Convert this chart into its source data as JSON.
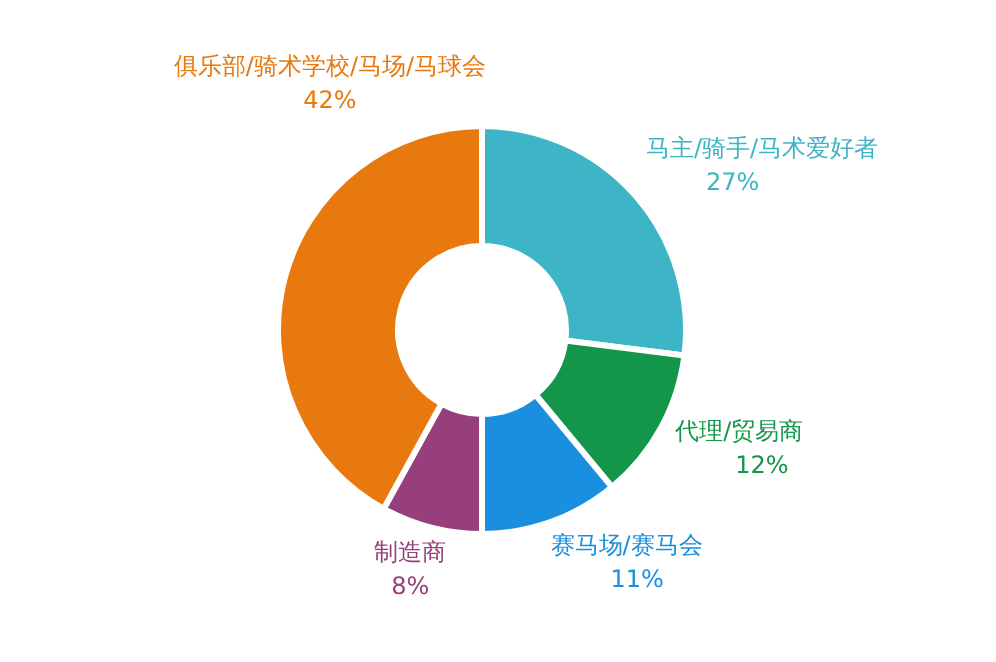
{
  "chart_data": {
    "type": "donut",
    "categories": [
      "马主/骑手/马术爱好者",
      "代理/贸易商",
      "赛马场/赛马会",
      "制造商",
      "俱乐部/骑术学校/马场/马球会"
    ],
    "values": [
      27,
      12,
      11,
      8,
      42
    ],
    "value_labels": [
      "27%",
      "12%",
      "11%",
      "8%",
      "42%"
    ],
    "colors": [
      "#3db5c6",
      "#13964a",
      "#1b8fdf",
      "#973f7c",
      "#e8790f"
    ]
  }
}
